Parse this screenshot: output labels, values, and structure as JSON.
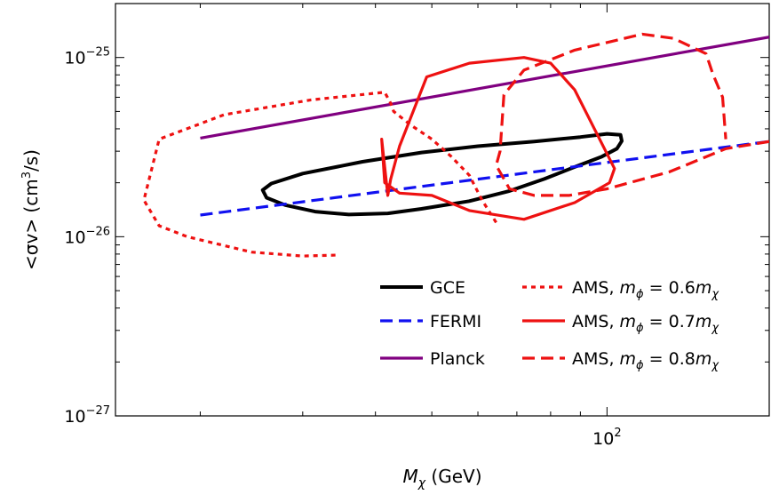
{
  "chart_data": {
    "type": "line",
    "xlabel": "M_χ (GeV)",
    "ylabel": "<σv> (cm³/s)",
    "x_scale": "log",
    "y_scale": "log",
    "xlim": [
      14.3,
      190
    ],
    "ylim": [
      1e-27,
      2e-25
    ],
    "x_ticks": [
      {
        "value": 100,
        "base": "10",
        "exp": "2"
      }
    ],
    "y_ticks": [
      {
        "value": 1e-25,
        "base": "10",
        "exp": "−25"
      },
      {
        "value": 1e-26,
        "base": "10",
        "exp": "−26"
      },
      {
        "value": 1e-27,
        "base": "10",
        "exp": "−27"
      }
    ],
    "grid": false,
    "legend_position": "bottom-right",
    "series": [
      {
        "name": "GCE",
        "color": "#000000",
        "style": "solid",
        "closed": true,
        "x": [
          25.6,
          26.5,
          30.0,
          38.0,
          48.0,
          60.0,
          75.0,
          90.0,
          100.0,
          105.5,
          106.0,
          104.0,
          98.0,
          88.0,
          78.0,
          68.0,
          58.0,
          48.0,
          42.0,
          36.0,
          31.5,
          28.0,
          26.0
        ],
        "y": [
          1.82e-26,
          1.98e-26,
          2.25e-26,
          2.62e-26,
          2.95e-26,
          3.2e-26,
          3.4e-26,
          3.6e-26,
          3.75e-26,
          3.7e-26,
          3.42e-26,
          3.1e-26,
          2.8e-26,
          2.45e-26,
          2.1e-26,
          1.8e-26,
          1.58e-26,
          1.43e-26,
          1.35e-26,
          1.33e-26,
          1.38e-26,
          1.5e-26,
          1.65e-26
        ]
      },
      {
        "name": "FERMI",
        "color": "#1010f0",
        "style": "dashed",
        "closed": false,
        "x": [
          20,
          190
        ],
        "y": [
          1.32e-26,
          3.4e-26
        ]
      },
      {
        "name": "Planck",
        "color": "#800080",
        "style": "solid",
        "closed": false,
        "x": [
          20,
          190
        ],
        "y": [
          3.55e-26,
          1.3e-25
        ]
      },
      {
        "name": "AMS, mφ = 0.6mχ",
        "color": "#ee1111",
        "style": "dotted",
        "closed": false,
        "x": [
          64.5,
          61.0,
          58.0,
          54.0,
          50.0,
          46.0,
          43.0,
          42.5,
          41.5,
          31.0,
          22.0,
          17.0,
          16.0,
          17.0,
          19.0,
          24.5,
          30.0,
          34.5
        ],
        "y": [
          1.2e-26,
          1.6e-26,
          2.2e-26,
          2.8e-26,
          3.5e-26,
          4.2e-26,
          5e-26,
          5.55e-26,
          6.4e-26,
          5.8e-26,
          4.8e-26,
          3.5e-26,
          1.6e-26,
          1.15e-26,
          1e-26,
          8.2e-27,
          7.8e-27,
          7.9e-27
        ]
      },
      {
        "name": "AMS, mφ = 0.7mχ",
        "color": "#ee1111",
        "style": "solid",
        "closed": true,
        "x": [
          42.0,
          42.5,
          44.0,
          49.0,
          58.0,
          72.0,
          80.0,
          88.0,
          103.0,
          101.0,
          88.0,
          72.0,
          58.0,
          50.0,
          44.0,
          41.5,
          41.0
        ],
        "y": [
          1.7e-26,
          2.1e-26,
          3.2e-26,
          7.8e-26,
          9.3e-26,
          1e-25,
          9.3e-26,
          6.6e-26,
          2.4e-26,
          2e-26,
          1.55e-26,
          1.25e-26,
          1.4e-26,
          1.7e-26,
          1.75e-26,
          2e-26,
          3.5e-26
        ]
      },
      {
        "name": "AMS, mφ = 0.8mχ",
        "color": "#ee1111",
        "style": "dashed",
        "closed": false,
        "x": [
          190,
          160,
          128,
          100,
          86,
          75.0,
          68.0,
          64.5,
          65.5,
          66.5,
          72.0,
          88.0,
          115.0,
          130.0,
          148.0,
          152.0,
          158.0,
          160.0
        ],
        "y": [
          3.4e-26,
          3.1e-26,
          2.3e-26,
          1.85e-26,
          1.7e-26,
          1.7e-26,
          1.85e-26,
          2.5e-26,
          3e-26,
          6.2e-26,
          8.5e-26,
          1.1e-25,
          1.35e-25,
          1.28e-25,
          1.05e-25,
          8.1e-26,
          6e-26,
          3.5e-26
        ]
      }
    ],
    "legend": {
      "columns": [
        [
          {
            "text": "GCE",
            "series": 0
          },
          {
            "text": "FERMI",
            "series": 1
          },
          {
            "text": "Planck",
            "series": 2
          }
        ],
        [
          {
            "text": "AMS, ",
            "math": "m",
            "sub1": "ϕ",
            "mid": " = 0.6",
            "math2": "m",
            "sub2": "χ",
            "series": 3
          },
          {
            "text": "AMS, ",
            "math": "m",
            "sub1": "ϕ",
            "mid": " = 0.7",
            "math2": "m",
            "sub2": "χ",
            "series": 4
          },
          {
            "text": "AMS, ",
            "math": "m",
            "sub1": "ϕ",
            "mid": " = 0.8",
            "math2": "m",
            "sub2": "χ",
            "series": 5
          }
        ]
      ]
    }
  },
  "labels": {
    "x_main": "M",
    "x_sub": "χ",
    "x_unit": " (GeV)",
    "y_pre": "<σv> (cm",
    "y_sup": "3",
    "y_post": "/s)"
  }
}
